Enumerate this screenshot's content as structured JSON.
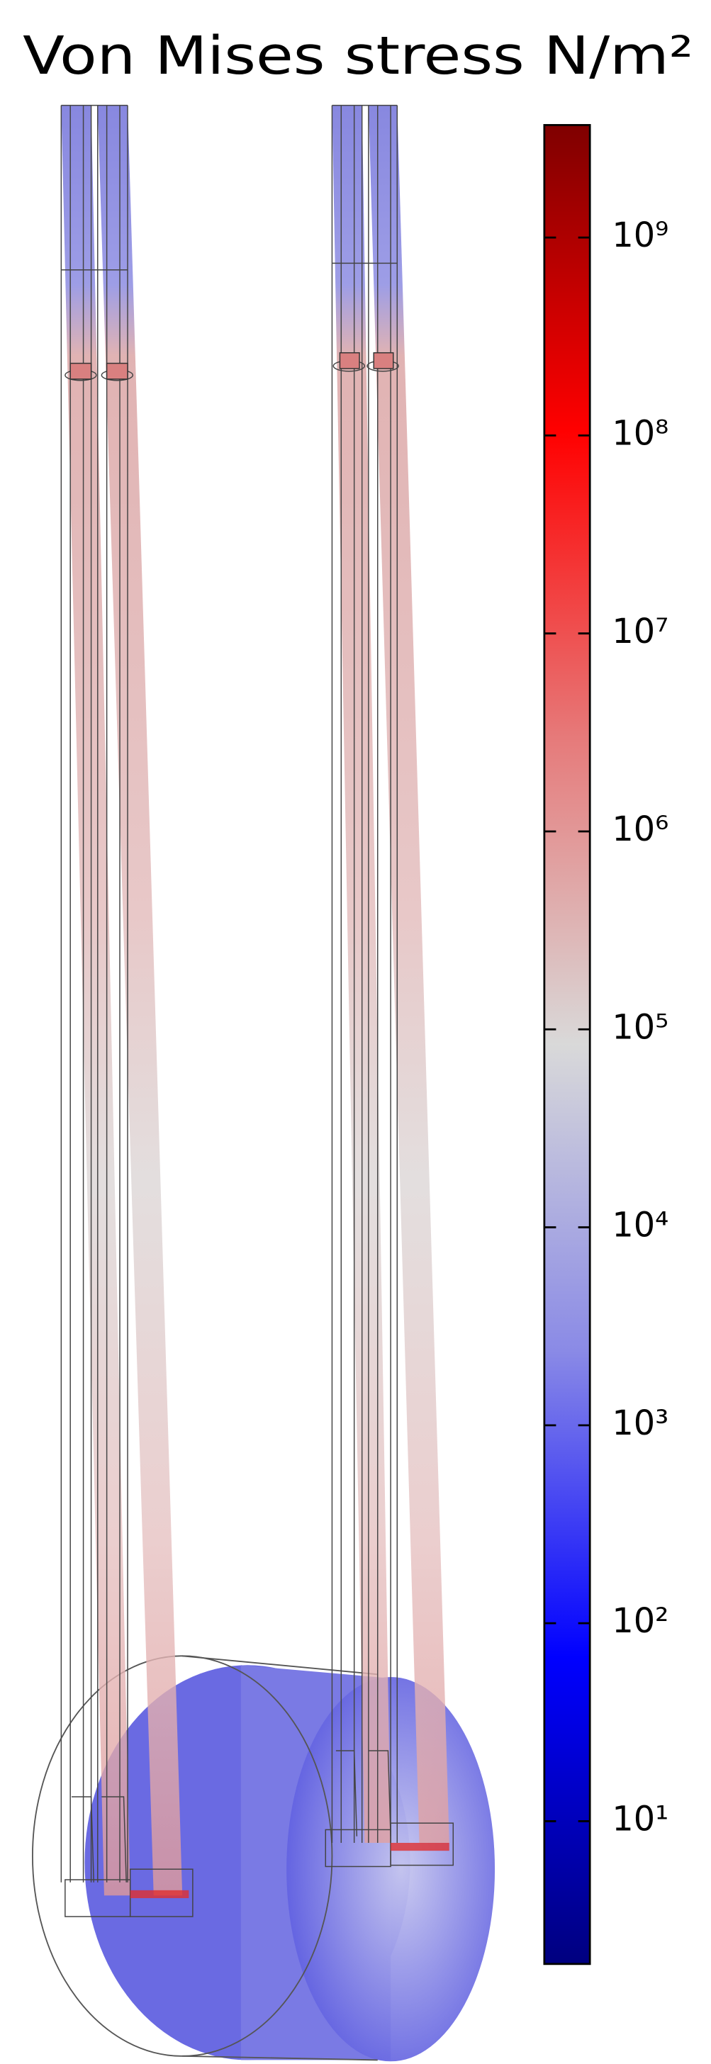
{
  "chart_data": {
    "type": "colorbar",
    "title": "Von Mises stress N/m²",
    "log_scale": true,
    "ylim": [
      1.9,
      3700000000
    ],
    "yticks": [
      {
        "value": 10,
        "label": "10¹"
      },
      {
        "value": 100,
        "label": "10²"
      },
      {
        "value": 1000,
        "label": "10³"
      },
      {
        "value": 10000,
        "label": "10⁴"
      },
      {
        "value": 100000,
        "label": "10⁵"
      },
      {
        "value": 1000000,
        "label": "10⁶"
      },
      {
        "value": 10000000,
        "label": "10⁷"
      },
      {
        "value": 100000000,
        "label": "10⁸"
      },
      {
        "value": 1000000000,
        "label": "10⁹"
      }
    ],
    "colormap": [
      "#00007f",
      "#0000ff",
      "#8a8ae6",
      "#d9d9d9",
      "#e67a7a",
      "#ff0000",
      "#7f0000"
    ]
  }
}
